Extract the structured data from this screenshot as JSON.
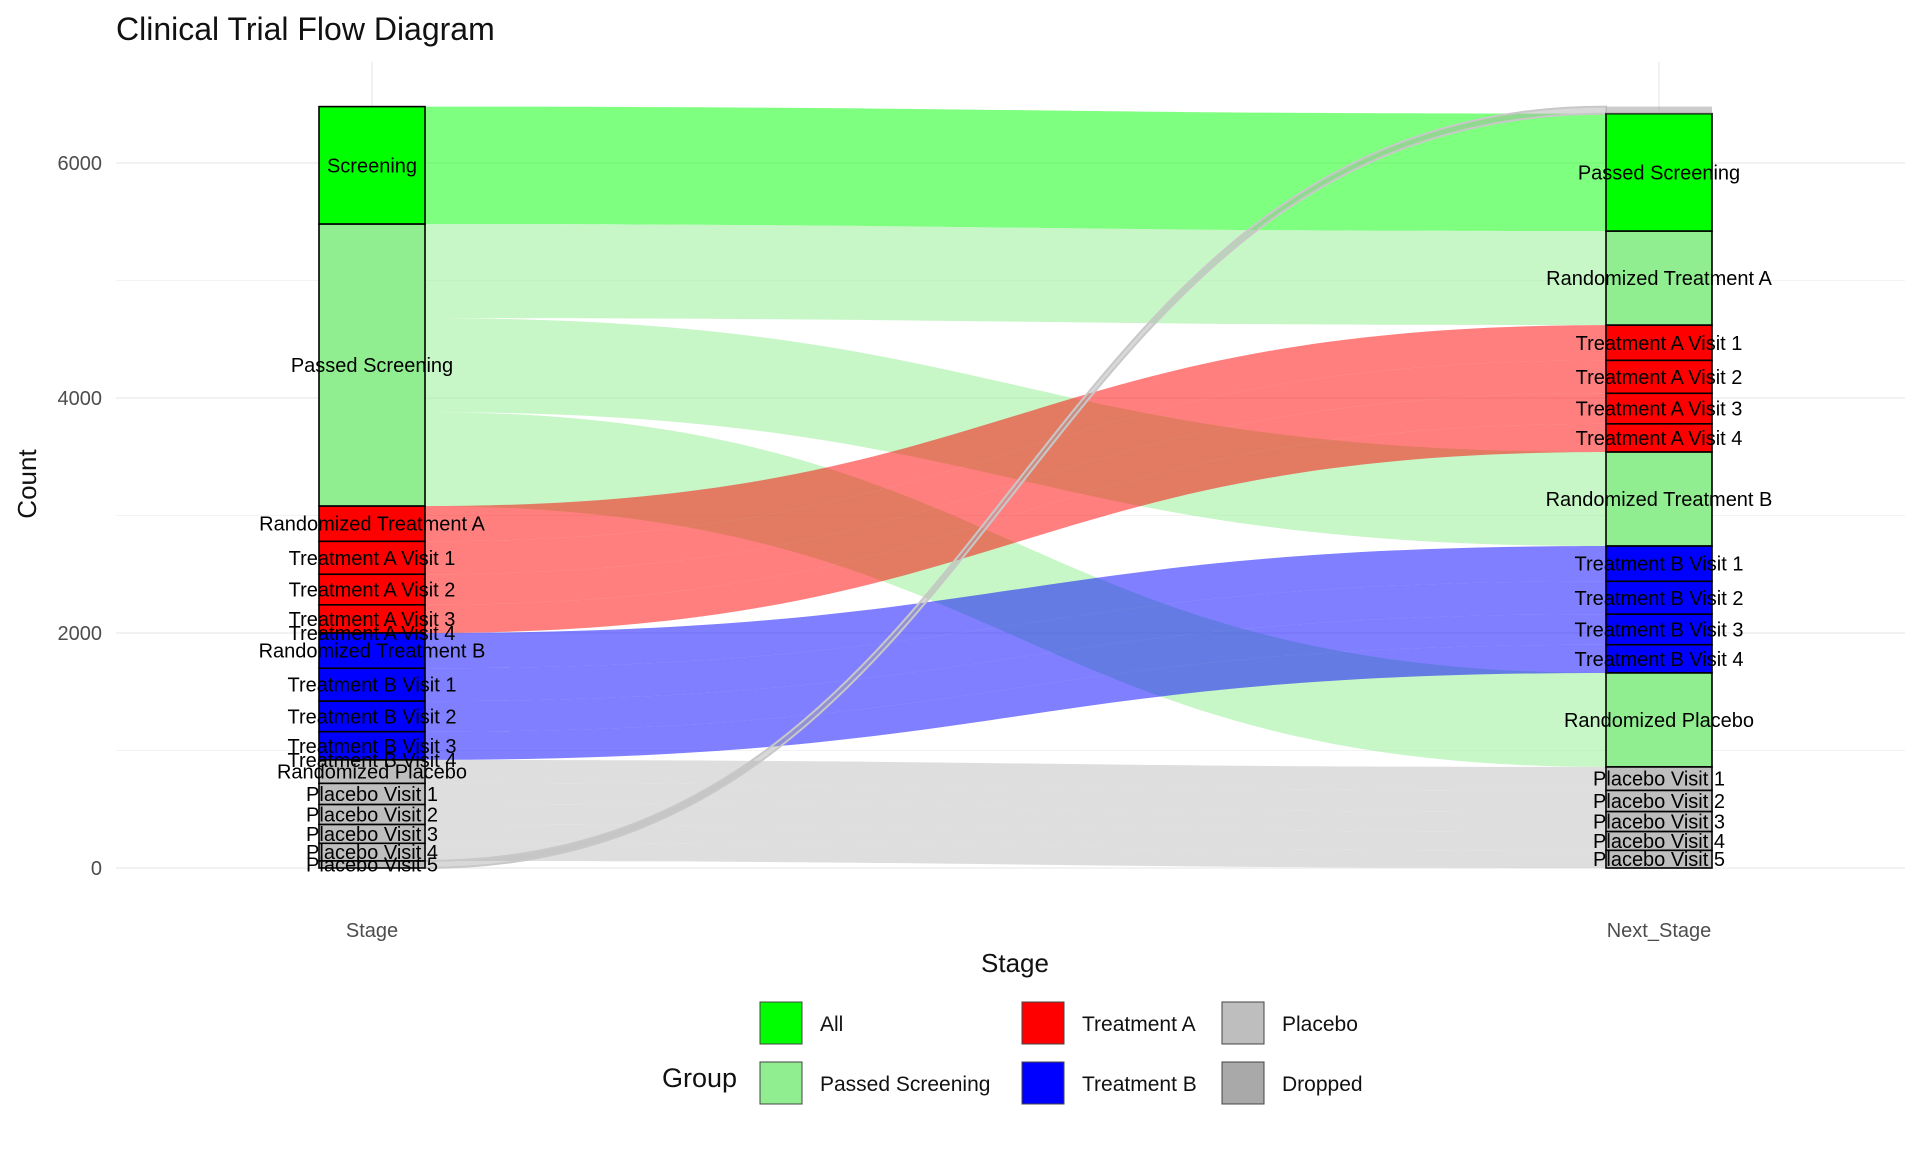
{
  "chart_data": {
    "type": "sankey",
    "title": "Clinical Trial Flow Diagram",
    "xlabel": "Stage",
    "ylabel": "Count",
    "ylim": [
      0,
      6500
    ],
    "yticks": [
      0,
      2000,
      4000,
      6000
    ],
    "axes": [
      "Stage",
      "Next_Stage"
    ],
    "grid": true,
    "stages": [
      {
        "name": "Stage",
        "nodes": [
          {
            "label": "Screening",
            "count": 1000,
            "group": "All"
          },
          {
            "label": "Passed Screening",
            "count": 2400,
            "group": "Passed Screening"
          },
          {
            "label": "Randomized Treatment A",
            "count": 300,
            "group": "Treatment A"
          },
          {
            "label": "Treatment A Visit 1",
            "count": 280,
            "group": "Treatment A"
          },
          {
            "label": "Treatment A Visit 2",
            "count": 260,
            "group": "Treatment A"
          },
          {
            "label": "Treatment A Visit 3",
            "count": 240,
            "group": "Treatment A"
          },
          {
            "label": "Treatment A Visit 4",
            "count": 0,
            "group": "Treatment A"
          },
          {
            "label": "Randomized Treatment B",
            "count": 300,
            "group": "Treatment B"
          },
          {
            "label": "Treatment B Visit 1",
            "count": 280,
            "group": "Treatment B"
          },
          {
            "label": "Treatment B Visit 2",
            "count": 260,
            "group": "Treatment B"
          },
          {
            "label": "Treatment B Visit 3",
            "count": 240,
            "group": "Treatment B"
          },
          {
            "label": "Treatment B Visit 4",
            "count": 0,
            "group": "Treatment B"
          },
          {
            "label": "Randomized Placebo",
            "count": 200,
            "group": "Placebo"
          },
          {
            "label": "Placebo Visit 1",
            "count": 180,
            "group": "Placebo"
          },
          {
            "label": "Placebo Visit 2",
            "count": 170,
            "group": "Placebo"
          },
          {
            "label": "Placebo Visit 3",
            "count": 160,
            "group": "Placebo"
          },
          {
            "label": "Placebo Visit 4",
            "count": 150,
            "group": "Placebo"
          },
          {
            "label": "Placebo Visit 5",
            "count": 60,
            "group": "Placebo"
          }
        ]
      },
      {
        "name": "Next_Stage",
        "nodes": [
          {
            "label": "Passed Screening",
            "count": 1000,
            "group": "All"
          },
          {
            "label": "Randomized Treatment A",
            "count": 800,
            "group": "Passed Screening"
          },
          {
            "label": "Treatment A Visit 1",
            "count": 300,
            "group": "Treatment A"
          },
          {
            "label": "Treatment A Visit 2",
            "count": 280,
            "group": "Treatment A"
          },
          {
            "label": "Treatment A Visit 3",
            "count": 260,
            "group": "Treatment A"
          },
          {
            "label": "Treatment A Visit 4",
            "count": 240,
            "group": "Treatment A"
          },
          {
            "label": "Randomized Treatment B",
            "count": 800,
            "group": "Passed Screening"
          },
          {
            "label": "Treatment B Visit 1",
            "count": 300,
            "group": "Treatment B"
          },
          {
            "label": "Treatment B Visit 2",
            "count": 280,
            "group": "Treatment B"
          },
          {
            "label": "Treatment B Visit 3",
            "count": 260,
            "group": "Treatment B"
          },
          {
            "label": "Treatment B Visit 4",
            "count": 240,
            "group": "Treatment B"
          },
          {
            "label": "Randomized Placebo",
            "count": 800,
            "group": "Passed Screening"
          },
          {
            "label": "Placebo Visit 1",
            "count": 200,
            "group": "Placebo"
          },
          {
            "label": "Placebo Visit 2",
            "count": 180,
            "group": "Placebo"
          },
          {
            "label": "Placebo Visit 3",
            "count": 170,
            "group": "Placebo"
          },
          {
            "label": "Placebo Visit 4",
            "count": 160,
            "group": "Placebo"
          },
          {
            "label": "Placebo Visit 5",
            "count": 150,
            "group": "Placebo"
          }
        ]
      }
    ],
    "dropped_count": 60,
    "flows": [
      {
        "from": "Screening",
        "to": "Passed Screening",
        "count": 1000,
        "group": "All"
      },
      {
        "from": "Passed Screening",
        "to": "Randomized Treatment A",
        "count": 800,
        "group": "Passed Screening"
      },
      {
        "from": "Passed Screening",
        "to": "Randomized Treatment B",
        "count": 800,
        "group": "Passed Screening"
      },
      {
        "from": "Passed Screening",
        "to": "Randomized Placebo",
        "count": 800,
        "group": "Passed Screening"
      },
      {
        "from": "Randomized Treatment A",
        "to": "Treatment A Visit 1",
        "count": 300,
        "group": "Treatment A"
      },
      {
        "from": "Treatment A Visit 1",
        "to": "Treatment A Visit 2",
        "count": 280,
        "group": "Treatment A"
      },
      {
        "from": "Treatment A Visit 2",
        "to": "Treatment A Visit 3",
        "count": 260,
        "group": "Treatment A"
      },
      {
        "from": "Treatment A Visit 3",
        "to": "Treatment A Visit 4",
        "count": 240,
        "group": "Treatment A"
      },
      {
        "from": "Randomized Treatment B",
        "to": "Treatment B Visit 1",
        "count": 300,
        "group": "Treatment B"
      },
      {
        "from": "Treatment B Visit 1",
        "to": "Treatment B Visit 2",
        "count": 280,
        "group": "Treatment B"
      },
      {
        "from": "Treatment B Visit 2",
        "to": "Treatment B Visit 3",
        "count": 260,
        "group": "Treatment B"
      },
      {
        "from": "Treatment B Visit 3",
        "to": "Treatment B Visit 4",
        "count": 240,
        "group": "Treatment B"
      },
      {
        "from": "Randomized Placebo",
        "to": "Placebo Visit 1",
        "count": 200,
        "group": "Placebo"
      },
      {
        "from": "Placebo Visit 1",
        "to": "Placebo Visit 2",
        "count": 180,
        "group": "Placebo"
      },
      {
        "from": "Placebo Visit 2",
        "to": "Placebo Visit 3",
        "count": 170,
        "group": "Placebo"
      },
      {
        "from": "Placebo Visit 3",
        "to": "Placebo Visit 4",
        "count": 160,
        "group": "Placebo"
      },
      {
        "from": "Placebo Visit 4",
        "to": "Placebo Visit 5",
        "count": 150,
        "group": "Placebo"
      },
      {
        "from": "Placebo Visit 5",
        "to": "Dropped",
        "count": 60,
        "group": "Dropped"
      }
    ],
    "legend": {
      "title": "Group",
      "placement": "bottom",
      "items": [
        {
          "label": "All",
          "color": "#00FF00"
        },
        {
          "label": "Passed Screening",
          "color": "#90EE90"
        },
        {
          "label": "Treatment A",
          "color": "#FF0000"
        },
        {
          "label": "Treatment B",
          "color": "#0000FF"
        },
        {
          "label": "Placebo",
          "color": "#BEBEBE"
        },
        {
          "label": "Dropped",
          "color": "#A9A9A9"
        }
      ]
    },
    "colors": {
      "All": "#00FF00",
      "Passed Screening": "#90EE90",
      "Treatment A": "#FF0000",
      "Treatment B": "#0000FF",
      "Placebo": "#BEBEBE",
      "Dropped": "#A9A9A9"
    }
  }
}
